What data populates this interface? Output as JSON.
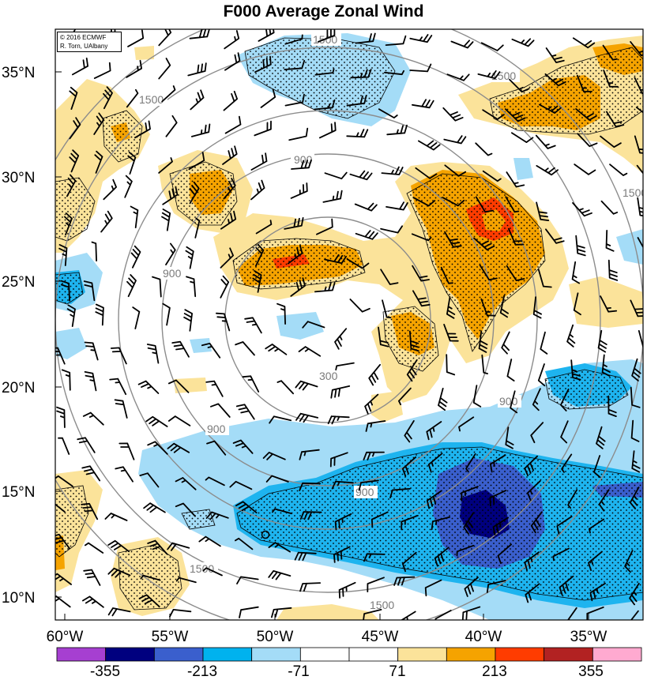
{
  "title": "F000 Average Zonal Wind",
  "credit": {
    "line1": "© 2016 ECMWF",
    "line2": "R. Torn, UAlbany"
  },
  "axes": {
    "latitudes": [
      "35°N",
      "30°N",
      "25°N",
      "20°N",
      "15°N",
      "10°N"
    ],
    "longitudes": [
      "60°W",
      "55°W",
      "50°W",
      "45°W",
      "40°W",
      "35°W"
    ]
  },
  "range_rings": {
    "labels": [
      "300",
      "900",
      "900",
      "900",
      "900",
      "900",
      "1500",
      "1500",
      "1500",
      "1500",
      "1500",
      "1500"
    ],
    "color": "#8c8c8c"
  },
  "colorbar": {
    "labels": [
      "-355",
      "-213",
      "-71",
      "71",
      "213",
      "355"
    ],
    "colors": [
      "#a63fd1",
      "#00007f",
      "#3a5fcd",
      "#00b2ee",
      "#a4dcf7",
      "#ffffff",
      "#ffffff",
      "#fbe39a",
      "#f5a300",
      "#ff3c00",
      "#b22222",
      "#ffaad0"
    ]
  },
  "fill_colors": {
    "light_blue": "#a4dcf7",
    "blue": "#1eb4ef",
    "mid_blue": "#3a5fcd",
    "dark_blue": "#00007f",
    "light_yellow": "#fbe39a",
    "orange": "#f5a300",
    "red_orange": "#ff3c00"
  }
}
